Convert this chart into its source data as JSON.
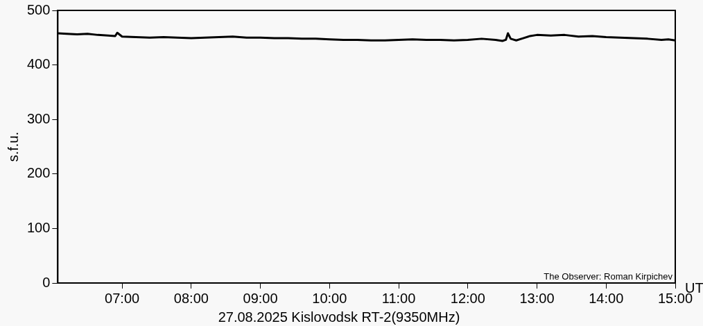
{
  "chart_data": {
    "type": "line",
    "title": "27.08.2025 Kislovodsk RT-2(9350MHz)",
    "xlabel": "UT",
    "ylabel": "s.f.u.",
    "annotations": [
      "The Observer: Roman Kirpichev"
    ],
    "xlim": [
      6.07,
      15
    ],
    "ylim": [
      0,
      500
    ],
    "xticks": [
      {
        "value": 7,
        "label": "07:00"
      },
      {
        "value": 8,
        "label": "08:00"
      },
      {
        "value": 9,
        "label": "09:00"
      },
      {
        "value": 10,
        "label": "10:00"
      },
      {
        "value": 11,
        "label": "11:00"
      },
      {
        "value": 12,
        "label": "12:00"
      },
      {
        "value": 13,
        "label": "13:00"
      },
      {
        "value": 14,
        "label": "14:00"
      },
      {
        "value": 15,
        "label": "15:00"
      }
    ],
    "yticks": [
      0,
      100,
      200,
      300,
      400,
      500
    ],
    "grid": false,
    "legend": false,
    "marker": "none",
    "line_style": "solid",
    "series": [
      {
        "color": "#000000",
        "x": [
          6.07,
          6.2,
          6.35,
          6.5,
          6.65,
          6.8,
          6.9,
          6.93,
          7.0,
          7.2,
          7.4,
          7.6,
          7.8,
          8.0,
          8.2,
          8.4,
          8.6,
          8.8,
          9.0,
          9.2,
          9.4,
          9.6,
          9.8,
          10.0,
          10.2,
          10.4,
          10.6,
          10.8,
          11.0,
          11.2,
          11.4,
          11.6,
          11.8,
          12.0,
          12.2,
          12.4,
          12.5,
          12.55,
          12.58,
          12.62,
          12.7,
          12.8,
          12.9,
          13.0,
          13.2,
          13.4,
          13.6,
          13.8,
          14.0,
          14.2,
          14.4,
          14.6,
          14.8,
          14.9,
          15.0
        ],
        "values": [
          458,
          457,
          456,
          457,
          455,
          454,
          453,
          459,
          452,
          451,
          450,
          451,
          450,
          449,
          450,
          451,
          452,
          450,
          450,
          449,
          449,
          448,
          448,
          447,
          446,
          446,
          445,
          445,
          446,
          447,
          446,
          446,
          445,
          446,
          448,
          446,
          444,
          446,
          458,
          448,
          445,
          449,
          453,
          455,
          454,
          455,
          452,
          453,
          451,
          450,
          449,
          448,
          446,
          447,
          445
        ]
      }
    ]
  }
}
